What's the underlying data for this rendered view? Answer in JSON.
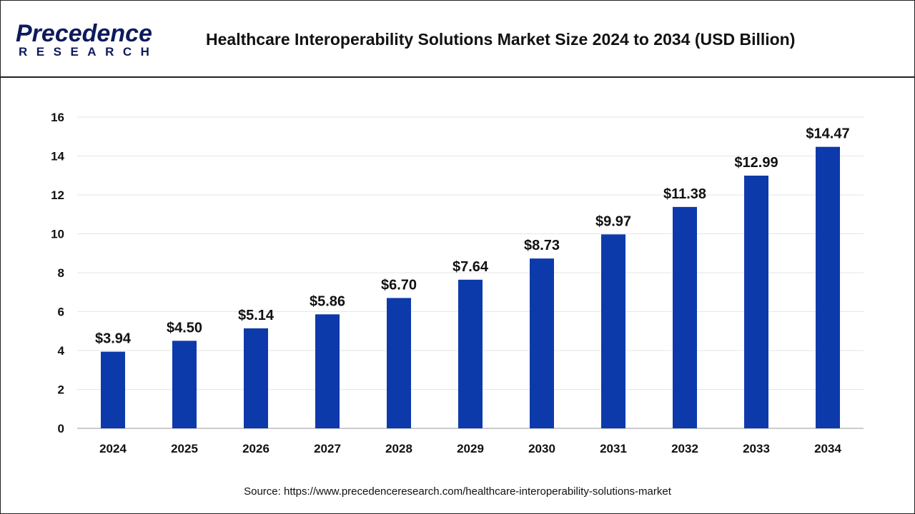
{
  "logo": {
    "main": "Precedence",
    "sub": "RESEARCH"
  },
  "header": {
    "title": "Healthcare Interoperability Solutions Market Size 2024 to 2034 (USD Billion)"
  },
  "source": "Source: https://www.precedenceresearch.com/healthcare-interoperability-solutions-market",
  "colors": {
    "bar": "#0d3aab",
    "grid": "#e6e6e6",
    "text": "#111111"
  },
  "chart_data": {
    "type": "bar",
    "title": "Healthcare Interoperability Solutions Market Size 2024 to 2034 (USD Billion)",
    "categories": [
      "2024",
      "2025",
      "2026",
      "2027",
      "2028",
      "2029",
      "2030",
      "2031",
      "2032",
      "2033",
      "2034"
    ],
    "values": [
      3.94,
      4.5,
      5.14,
      5.86,
      6.7,
      7.64,
      8.73,
      9.97,
      11.38,
      12.99,
      14.47
    ],
    "data_labels": [
      "$3.94",
      "$4.50",
      "$5.14",
      "$5.86",
      "$6.70",
      "$7.64",
      "$8.73",
      "$9.97",
      "$11.38",
      "$12.99",
      "$14.47"
    ],
    "ylim": [
      0,
      16
    ],
    "yticks": [
      0,
      2,
      4,
      6,
      8,
      10,
      12,
      14,
      16
    ],
    "grid": true,
    "legend": "none",
    "xlabel": "",
    "ylabel": ""
  }
}
